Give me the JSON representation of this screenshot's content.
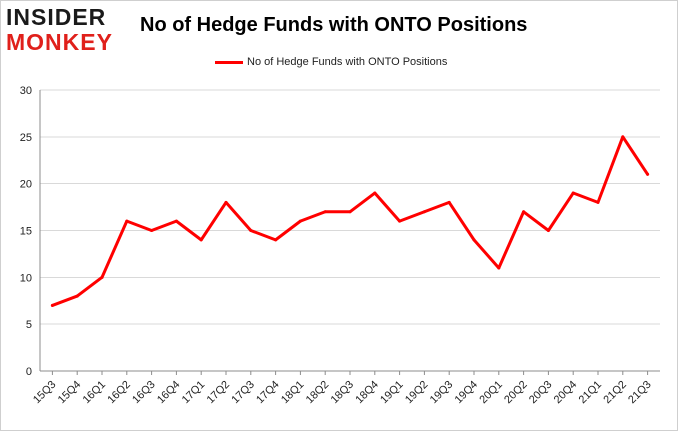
{
  "logo": {
    "line1": "INSIDER",
    "line2": "MONKEY"
  },
  "chart_data": {
    "type": "line",
    "title": "No of Hedge Funds with ONTO Positions",
    "xlabel": "",
    "ylabel": "",
    "ylim": [
      0,
      30
    ],
    "yticks": [
      0,
      5,
      10,
      15,
      20,
      25,
      30
    ],
    "grid": true,
    "legend_position": "top-center",
    "categories": [
      "15Q3",
      "15Q4",
      "16Q1",
      "16Q2",
      "16Q3",
      "16Q4",
      "17Q1",
      "17Q2",
      "17Q3",
      "17Q4",
      "18Q1",
      "18Q2",
      "18Q3",
      "18Q4",
      "19Q1",
      "19Q2",
      "19Q3",
      "19Q4",
      "20Q1",
      "20Q2",
      "20Q3",
      "20Q4",
      "21Q1",
      "21Q2",
      "21Q3"
    ],
    "series": [
      {
        "name": "No of Hedge Funds with ONTO Positions",
        "color": "#ff0000",
        "values": [
          7,
          8,
          10,
          16,
          15,
          16,
          14,
          18,
          15,
          14,
          16,
          17,
          17,
          19,
          16,
          17,
          18,
          14,
          11,
          17,
          15,
          19,
          18,
          25,
          21
        ]
      }
    ]
  }
}
